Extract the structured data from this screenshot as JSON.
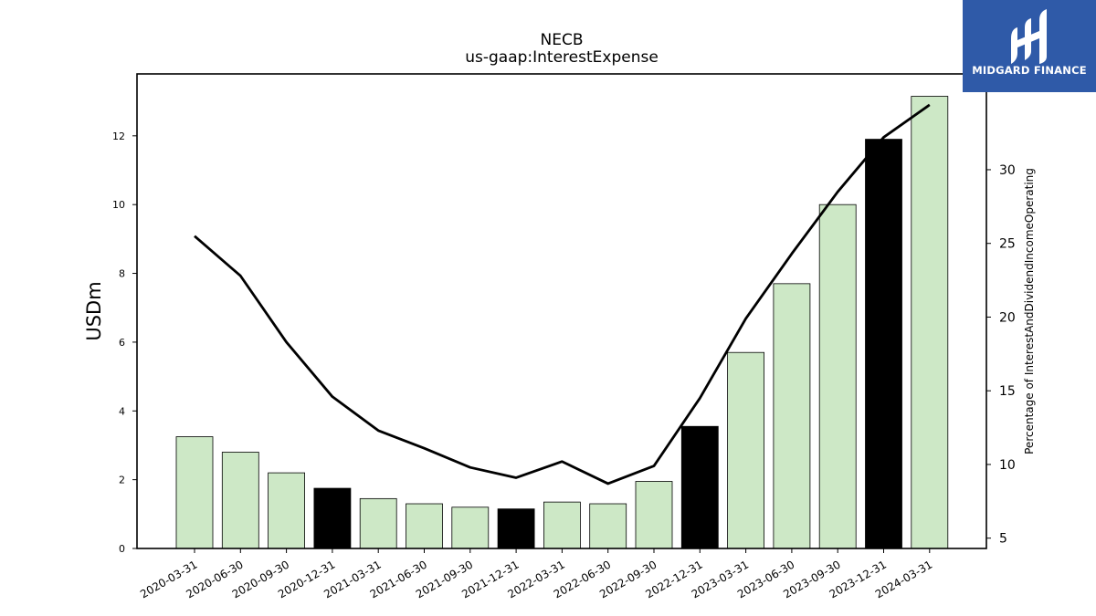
{
  "logo": {
    "text": "MIDGARD FINANCE",
    "bg_color": "#2f5aa8"
  },
  "chart_data": {
    "type": "bar",
    "title": "NECB",
    "subtitle": "us-gaap:InterestExpense",
    "ylabel": "USDm",
    "y2label": "Percentage of InterestAndDividendIncomeOperating",
    "ylim": [
      0,
      13.8
    ],
    "y2lim": [
      4.3,
      36.5
    ],
    "yticks": [
      0,
      2,
      4,
      6,
      8,
      10,
      12
    ],
    "y2ticks": [
      5,
      10,
      15,
      20,
      25,
      30
    ],
    "categories": [
      "2020-03-31",
      "2020-06-30",
      "2020-09-30",
      "2020-12-31",
      "2021-03-31",
      "2021-06-30",
      "2021-09-30",
      "2021-12-31",
      "2022-03-31",
      "2022-06-30",
      "2022-09-30",
      "2022-12-31",
      "2023-03-31",
      "2023-06-30",
      "2023-09-30",
      "2023-12-31",
      "2024-03-31"
    ],
    "series": [
      {
        "kind": "bar",
        "axis": "left",
        "values": [
          3.25,
          2.8,
          2.2,
          1.75,
          1.45,
          1.3,
          1.2,
          1.15,
          1.35,
          1.3,
          1.95,
          3.55,
          5.7,
          7.7,
          10.0,
          11.9,
          13.15
        ],
        "colors": [
          "#cde8c6",
          "#cde8c6",
          "#cde8c6",
          "#000000",
          "#cde8c6",
          "#cde8c6",
          "#cde8c6",
          "#000000",
          "#cde8c6",
          "#cde8c6",
          "#cde8c6",
          "#000000",
          "#cde8c6",
          "#cde8c6",
          "#cde8c6",
          "#000000",
          "#cde8c6"
        ]
      },
      {
        "kind": "line",
        "axis": "right",
        "color": "#000000",
        "values": [
          25.5,
          22.8,
          18.3,
          14.6,
          12.3,
          11.1,
          9.8,
          9.1,
          10.2,
          8.7,
          9.9,
          14.5,
          19.9,
          24.3,
          28.5,
          32.2,
          34.4
        ]
      }
    ],
    "grid": false,
    "legend": "none"
  }
}
